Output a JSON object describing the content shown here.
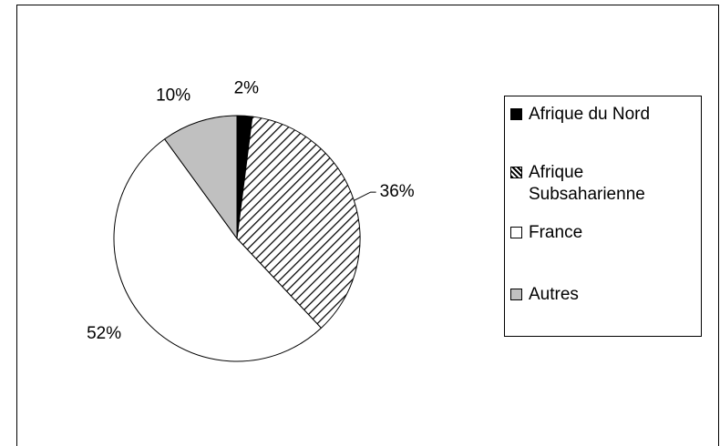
{
  "chart_data": {
    "type": "pie",
    "categories": [
      "Afrique du Nord",
      "Afrique Subsaharienne",
      "France",
      "Autres"
    ],
    "values": [
      2,
      36,
      52,
      10
    ],
    "value_labels": [
      "2%",
      "36%",
      "52%",
      "10%"
    ],
    "colors": [
      "#000000",
      "#ffffff",
      "#ffffff",
      "#c0c0c0"
    ],
    "patterns": [
      null,
      "diagonal",
      null,
      null
    ],
    "legend": "right"
  }
}
